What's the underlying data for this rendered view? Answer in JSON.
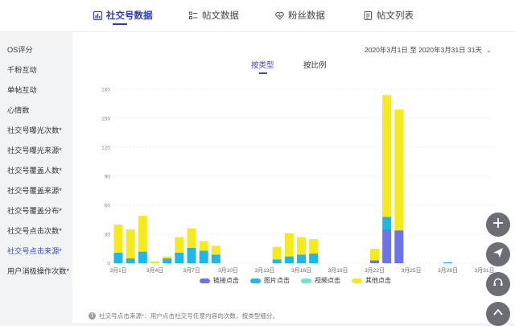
{
  "tabs": [
    {
      "label": "社交号数据",
      "icon": "bar-chart-icon",
      "active": true
    },
    {
      "label": "帖文数据",
      "icon": "list-icon",
      "active": false
    },
    {
      "label": "粉丝数据",
      "icon": "heart-icon",
      "active": false
    },
    {
      "label": "帖文列表",
      "icon": "document-icon",
      "active": false
    }
  ],
  "sidebar": {
    "items": [
      {
        "label": "OS评分"
      },
      {
        "label": "千粉互动"
      },
      {
        "label": "单帖互动"
      },
      {
        "label": "心情数"
      },
      {
        "label": "社交号曝光次数*"
      },
      {
        "label": "社交号曝光来源*"
      },
      {
        "label": "社交号覆盖人数*"
      },
      {
        "label": "社交号覆盖来源*"
      },
      {
        "label": "社交号覆盖分布*"
      },
      {
        "label": "社交号点击次数*"
      },
      {
        "label": "社交号点击来源*",
        "active": true
      },
      {
        "label": "用户消极操作次数*"
      }
    ]
  },
  "date_range": {
    "label": "2020年3月1日 至 2020年3月31日 31天"
  },
  "subtabs": [
    {
      "label": "按类型",
      "active": true
    },
    {
      "label": "按比例",
      "active": false
    }
  ],
  "chart_data": {
    "type": "bar",
    "stacked": true,
    "x": [
      "3月1日",
      "3月2日",
      "3月3日",
      "3月4日",
      "3月5日",
      "3月6日",
      "3月7日",
      "3月8日",
      "3月9日",
      "3月10日",
      "3月11日",
      "3月12日",
      "3月13日",
      "3月14日",
      "3月15日",
      "3月16日",
      "3月17日",
      "3月18日",
      "3月19日",
      "3月20日",
      "3月21日",
      "3月22日",
      "3月23日",
      "3月24日",
      "3月25日",
      "3月26日",
      "3月27日",
      "3月28日",
      "3月29日",
      "3月30日",
      "3月31日"
    ],
    "xtick_labels": [
      "3月1日",
      "3月4日",
      "3月7日",
      "3月10日",
      "3月13日",
      "3月16日",
      "3月19日",
      "3月22日",
      "3月25日",
      "3月28日",
      "3月31日"
    ],
    "xtick_indices": [
      0,
      3,
      6,
      9,
      12,
      15,
      18,
      21,
      24,
      27,
      30
    ],
    "yticks": [
      0,
      30,
      60,
      90,
      120,
      150,
      180
    ],
    "ylim": [
      0,
      180
    ],
    "series": [
      {
        "name": "链接点击",
        "color": "#6b74e8",
        "values": [
          0,
          0,
          0,
          0,
          0,
          0,
          0,
          0,
          0,
          0,
          0,
          0,
          0,
          0,
          0,
          0,
          0,
          0,
          0,
          0,
          0,
          3,
          35,
          34,
          0,
          0,
          0,
          0,
          0,
          0,
          0
        ]
      },
      {
        "name": "图片点击",
        "color": "#1fb6e8",
        "values": [
          11,
          5,
          12,
          0,
          5,
          11,
          16,
          13,
          9,
          0,
          0,
          0,
          0,
          4,
          7,
          9,
          10,
          0,
          0,
          0,
          0,
          0,
          13,
          0,
          0,
          0,
          0,
          1,
          0,
          0,
          0
        ]
      },
      {
        "name": "视频点击",
        "color": "#6be8c8",
        "values": [
          0,
          0,
          0,
          0,
          0,
          0,
          0,
          0,
          0,
          0,
          0,
          0,
          0,
          0,
          0,
          0,
          0,
          0,
          0,
          0,
          0,
          0,
          0,
          0,
          0,
          0,
          0,
          0,
          0,
          0,
          0
        ]
      },
      {
        "name": "其他点击",
        "color": "#f5ea1e",
        "values": [
          29,
          30,
          37,
          2,
          2,
          16,
          20,
          10,
          9,
          0,
          0,
          0,
          0,
          13,
          24,
          18,
          15,
          0,
          0,
          0,
          0,
          12,
          126,
          125,
          0,
          0,
          0,
          0,
          0,
          0,
          0
        ]
      }
    ]
  },
  "footnote": {
    "text": "社交号点击来源*：用户点击社交号任意内容的次数，按类型细分。"
  },
  "fabs": [
    {
      "icon": "plus-icon"
    },
    {
      "icon": "send-icon"
    },
    {
      "icon": "headset-icon"
    },
    {
      "icon": "chevron-up-icon"
    }
  ]
}
